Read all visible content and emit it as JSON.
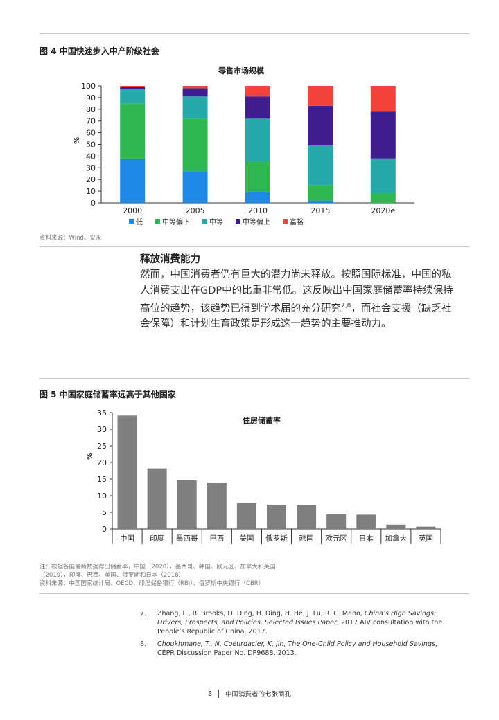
{
  "figure4": {
    "title": "图 4  中国快速步入中产阶级社会",
    "source": "资料来源：Wind、安永"
  },
  "section": {
    "heading": "释放消费能力",
    "paragraph_main": "然而，中国消费者仍有巨大的潜力尚未释放。按照国际标准，中国的私人消费支出在GDP中的比重非常低。这反映出中国家庭储蓄率持续保持高位的趋势，该趋势已得到学术届的充分研究",
    "paragraph_sup": "7,8",
    "paragraph_tail": "，而社会支援（缺乏社会保障）和计划生育政策是形成这一趋势的主要推动力。"
  },
  "figure5": {
    "title": "图 5  中国家庭储蓄率远高于其他国家",
    "note": "注：根据各国最新数据得出储蓄率，中国（2020），墨西哥、韩国、欧元区、加拿大和英国（2019），印度、巴西、美国、俄罗斯和日本（2018）",
    "source": "资料来源：中国国家统计局、OECD、印度储备银行（RBI）、俄罗斯中央银行（CBR）"
  },
  "references": [
    {
      "num": "7.",
      "authors": "Zhang, L., R. Brooks, D. Ding, H. Ding, H. He, J. Lu, R. C. Mano, ",
      "italic": "China’s High Savings: Drivers, Prospects, and Policies, Selected Issues Paper",
      "rest": ", 2017 AIV consultation with the People’s Republic of China, 2017."
    },
    {
      "num": "8.",
      "authors": "Choukhmane, T., N. Coeurdacier, K. Jin, ",
      "italic": "The One-Child Policy and Household Savings",
      "rest": ", CEPR Discussion Paper No. DP9688, 2013."
    }
  ],
  "footer": {
    "page": "8",
    "text": "中国消费者的七张面孔"
  },
  "chart_data": [
    {
      "type": "bar",
      "stacked": true,
      "title": "零售市场规模",
      "ylabel": "%",
      "ylim": [
        0,
        100
      ],
      "yticks": [
        0,
        10,
        20,
        30,
        40,
        50,
        60,
        70,
        80,
        90,
        100
      ],
      "categories": [
        "2000",
        "2005",
        "2010",
        "2015",
        "2020e"
      ],
      "legend_position": "bottom",
      "series": [
        {
          "name": "低",
          "color": "#1e88e5",
          "values": [
            38,
            27,
            9,
            2,
            0
          ]
        },
        {
          "name": "中等偏下",
          "color": "#2eb84f",
          "values": [
            47,
            45,
            27,
            13,
            8
          ]
        },
        {
          "name": "中等",
          "color": "#26a9a9",
          "values": [
            12,
            19,
            36,
            34,
            30
          ]
        },
        {
          "name": "中等偏上",
          "color": "#3f1d8f",
          "values": [
            2,
            7,
            19,
            34,
            40
          ]
        },
        {
          "name": "富裕",
          "color": "#f4433a",
          "values": [
            1,
            2,
            9,
            17,
            22
          ]
        }
      ]
    },
    {
      "type": "bar",
      "title": "住房储蓄率",
      "ylabel": "%",
      "ylim": [
        0,
        35
      ],
      "yticks": [
        0,
        5,
        10,
        15,
        20,
        25,
        30,
        35
      ],
      "categories": [
        "中国",
        "印度",
        "墨西哥",
        "巴西",
        "美国",
        "俄罗斯",
        "韩国",
        "欧元区",
        "日本",
        "加拿大",
        "英国"
      ],
      "color": "#7f7f7f",
      "values": [
        34.1,
        18.2,
        14.6,
        13.9,
        7.8,
        7.3,
        7.2,
        4.4,
        4.3,
        1.3,
        0.7
      ]
    }
  ]
}
